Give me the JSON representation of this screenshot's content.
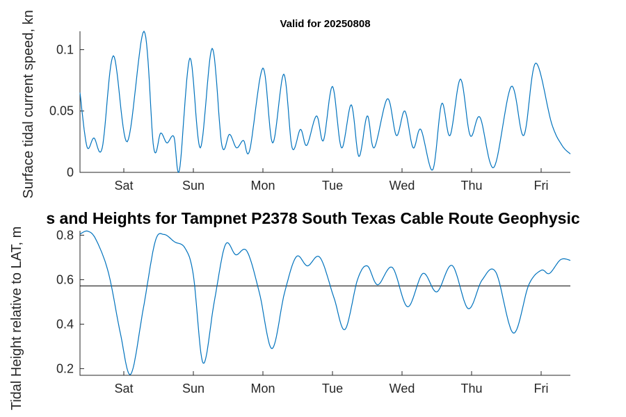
{
  "main_title": "s and Heights for Tampnet P2378 South Texas Cable Route Geophysic",
  "colors": {
    "line": "#0072BD",
    "axis": "#262626",
    "reference_line": "#000000",
    "background": "#ffffff"
  },
  "chart_data": [
    {
      "type": "line",
      "title": "Valid for 20250808",
      "ylabel": "Surface tidal current speed, kn",
      "xlabel": "",
      "x_tick_labels": [
        "Sat",
        "Sun",
        "Mon",
        "Tue",
        "Wed",
        "Thu",
        "Fri"
      ],
      "x_ticks_days": [
        0,
        1,
        2,
        3,
        4,
        5,
        6
      ],
      "xlim": [
        -0.63,
        6.42
      ],
      "ylim": [
        0,
        0.115
      ],
      "y_ticks": [
        0,
        0.05,
        0.1
      ],
      "y_tick_labels": [
        "0",
        "0.05",
        "0.1"
      ],
      "grid": false,
      "legend": null,
      "series": [
        {
          "name": "surface-tidal-current-speed",
          "color": "#0072BD",
          "points_day_value": [
            [
              -0.63,
              0.065
            ],
            [
              -0.53,
              0.021
            ],
            [
              -0.43,
              0.028
            ],
            [
              -0.31,
              0.02
            ],
            [
              -0.15,
              0.095
            ],
            [
              0.05,
              0.025
            ],
            [
              0.29,
              0.115
            ],
            [
              0.43,
              0.02
            ],
            [
              0.53,
              0.032
            ],
            [
              0.62,
              0.024
            ],
            [
              0.72,
              0.029
            ],
            [
              0.8,
              0.002
            ],
            [
              0.95,
              0.093
            ],
            [
              1.1,
              0.02
            ],
            [
              1.27,
              0.101
            ],
            [
              1.41,
              0.022
            ],
            [
              1.52,
              0.031
            ],
            [
              1.62,
              0.02
            ],
            [
              1.72,
              0.026
            ],
            [
              1.81,
              0.018
            ],
            [
              2.0,
              0.085
            ],
            [
              2.14,
              0.024
            ],
            [
              2.3,
              0.08
            ],
            [
              2.42,
              0.02
            ],
            [
              2.54,
              0.035
            ],
            [
              2.63,
              0.022
            ],
            [
              2.77,
              0.046
            ],
            [
              2.87,
              0.026
            ],
            [
              3.0,
              0.07
            ],
            [
              3.13,
              0.02
            ],
            [
              3.27,
              0.055
            ],
            [
              3.38,
              0.013
            ],
            [
              3.5,
              0.046
            ],
            [
              3.6,
              0.02
            ],
            [
              3.79,
              0.06
            ],
            [
              3.92,
              0.03
            ],
            [
              4.04,
              0.05
            ],
            [
              4.16,
              0.02
            ],
            [
              4.27,
              0.035
            ],
            [
              4.44,
              0.002
            ],
            [
              4.57,
              0.056
            ],
            [
              4.69,
              0.03
            ],
            [
              4.84,
              0.076
            ],
            [
              4.98,
              0.03
            ],
            [
              5.12,
              0.045
            ],
            [
              5.32,
              0.004
            ],
            [
              5.57,
              0.07
            ],
            [
              5.75,
              0.03
            ],
            [
              5.92,
              0.089
            ],
            [
              6.15,
              0.04
            ],
            [
              6.3,
              0.022
            ],
            [
              6.42,
              0.015
            ]
          ]
        }
      ]
    },
    {
      "type": "line",
      "title": "",
      "ylabel": "Tidal Height relative to LAT, m",
      "xlabel": "",
      "x_tick_labels": [
        "Sat",
        "Sun",
        "Mon",
        "Tue",
        "Wed",
        "Thu",
        "Fri"
      ],
      "x_ticks_days": [
        0,
        1,
        2,
        3,
        4,
        5,
        6
      ],
      "xlim": [
        -0.63,
        6.42
      ],
      "ylim": [
        0.17,
        0.82
      ],
      "y_ticks": [
        0.2,
        0.4,
        0.6,
        0.8
      ],
      "y_tick_labels": [
        "0.2",
        "0.4",
        "0.6",
        "0.8"
      ],
      "grid": false,
      "legend": null,
      "reference_line": {
        "value": 0.572,
        "color": "#000000",
        "name": "datum-line"
      },
      "series": [
        {
          "name": "tidal-height",
          "color": "#0072BD",
          "points_day_value": [
            [
              -0.63,
              0.805
            ],
            [
              -0.52,
              0.818
            ],
            [
              -0.4,
              0.78
            ],
            [
              -0.22,
              0.63
            ],
            [
              -0.05,
              0.36
            ],
            [
              0.1,
              0.175
            ],
            [
              0.28,
              0.47
            ],
            [
              0.45,
              0.77
            ],
            [
              0.58,
              0.803
            ],
            [
              0.73,
              0.77
            ],
            [
              0.88,
              0.742
            ],
            [
              1.0,
              0.62
            ],
            [
              1.14,
              0.225
            ],
            [
              1.3,
              0.5
            ],
            [
              1.46,
              0.757
            ],
            [
              1.61,
              0.712
            ],
            [
              1.77,
              0.728
            ],
            [
              1.95,
              0.54
            ],
            [
              2.13,
              0.29
            ],
            [
              2.31,
              0.54
            ],
            [
              2.48,
              0.703
            ],
            [
              2.64,
              0.662
            ],
            [
              2.82,
              0.7
            ],
            [
              3.02,
              0.52
            ],
            [
              3.18,
              0.376
            ],
            [
              3.36,
              0.6
            ],
            [
              3.5,
              0.662
            ],
            [
              3.65,
              0.577
            ],
            [
              3.86,
              0.655
            ],
            [
              4.08,
              0.478
            ],
            [
              4.3,
              0.628
            ],
            [
              4.5,
              0.545
            ],
            [
              4.72,
              0.664
            ],
            [
              4.95,
              0.47
            ],
            [
              5.15,
              0.598
            ],
            [
              5.35,
              0.633
            ],
            [
              5.6,
              0.36
            ],
            [
              5.82,
              0.575
            ],
            [
              6.0,
              0.642
            ],
            [
              6.12,
              0.628
            ],
            [
              6.28,
              0.69
            ],
            [
              6.42,
              0.687
            ]
          ]
        }
      ]
    }
  ]
}
